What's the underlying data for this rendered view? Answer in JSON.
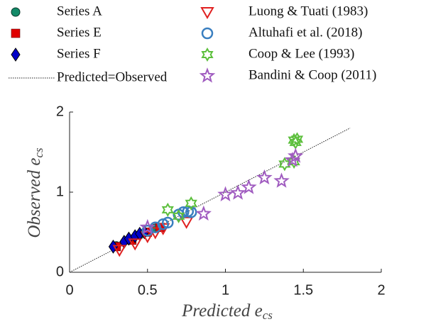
{
  "chart_data": {
    "type": "scatter",
    "xlabel": {
      "text": "Predicted e",
      "subscript": "cs"
    },
    "ylabel": {
      "text": "Observed e",
      "subscript": "cs"
    },
    "xlim": [
      0,
      2
    ],
    "ylim": [
      0,
      2
    ],
    "xticks": [
      0,
      0.5,
      1,
      1.5,
      2
    ],
    "yticks": [
      0,
      1,
      2
    ],
    "reference_line": {
      "name": "Predicted=Observed",
      "color": "#222222",
      "x": [
        0,
        1.8
      ],
      "y": [
        0,
        1.8
      ]
    },
    "series": [
      {
        "name": "Series A",
        "color": "#138a68",
        "marker": "circle-filled",
        "x": [
          0.3,
          0.45,
          0.55
        ],
        "values": [
          0.33,
          0.47,
          0.55
        ]
      },
      {
        "name": "Series E",
        "color": "#e00000",
        "marker": "square",
        "x": [
          0.3,
          0.4,
          0.5,
          0.58
        ],
        "values": [
          0.32,
          0.4,
          0.5,
          0.56
        ]
      },
      {
        "name": "Series F",
        "color": "#0000c8",
        "marker": "diamond",
        "x": [
          0.28,
          0.35,
          0.38,
          0.42,
          0.45,
          0.48
        ],
        "values": [
          0.32,
          0.38,
          0.42,
          0.45,
          0.48,
          0.5
        ]
      },
      {
        "name": "Luong & Tuati (1983)",
        "color": "#e02020",
        "marker": "triangle-down",
        "x": [
          0.32,
          0.42,
          0.5,
          0.55,
          0.6,
          0.75
        ],
        "values": [
          0.28,
          0.36,
          0.45,
          0.5,
          0.55,
          0.63
        ]
      },
      {
        "name": "Altuhafi et al. (2018)",
        "color": "#3a7fc0",
        "marker": "circle",
        "x": [
          0.5,
          0.55,
          0.6,
          0.63,
          0.7,
          0.73,
          0.76,
          0.78
        ],
        "values": [
          0.52,
          0.56,
          0.6,
          0.62,
          0.72,
          0.75,
          0.76,
          0.75
        ]
      },
      {
        "name": "Coop & Lee (1993)",
        "color": "#5cbf3c",
        "marker": "hexagram",
        "x": [
          0.63,
          0.7,
          0.78,
          1.38,
          1.44,
          1.44,
          1.46,
          1.45
        ],
        "values": [
          0.78,
          0.7,
          0.86,
          1.35,
          1.38,
          1.65,
          1.66,
          1.62
        ]
      },
      {
        "name": "Bandini & Coop (2011)",
        "color": "#a05cc0",
        "marker": "star",
        "x": [
          0.5,
          0.86,
          1.0,
          1.08,
          1.15,
          1.25,
          1.36,
          1.43,
          1.45
        ],
        "values": [
          0.56,
          0.73,
          0.97,
          0.99,
          1.06,
          1.18,
          1.14,
          1.4,
          1.45
        ]
      }
    ]
  }
}
